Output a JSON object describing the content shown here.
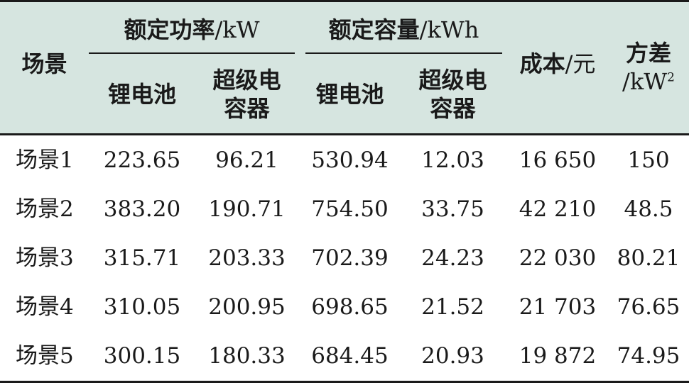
{
  "header": {
    "scenario": "场景",
    "power_group": {
      "cn": "额定功率",
      "unit": "/kW"
    },
    "capacity_group": {
      "cn": "额定容量",
      "unit": "/kWh"
    },
    "li_battery": "锂电池",
    "supercap_line1": "超级电",
    "supercap_line2": "容器",
    "cost": {
      "cn": "成本",
      "unit": "/元"
    },
    "variance": {
      "cn": "方差",
      "unit": "/kW",
      "sup": "2"
    }
  },
  "rows": [
    {
      "name_cn": "场景",
      "name_num": "1",
      "p_li": "223.65",
      "p_sc": "96.21",
      "c_li": "530.94",
      "c_sc": "12.03",
      "cost": "16 650",
      "variance": "150"
    },
    {
      "name_cn": "场景",
      "name_num": "2",
      "p_li": "383.20",
      "p_sc": "190.71",
      "c_li": "754.50",
      "c_sc": "33.75",
      "cost": "42 210",
      "variance": "48.5"
    },
    {
      "name_cn": "场景",
      "name_num": "3",
      "p_li": "315.71",
      "p_sc": "203.33",
      "c_li": "702.39",
      "c_sc": "24.23",
      "cost": "22 030",
      "variance": "80.21"
    },
    {
      "name_cn": "场景",
      "name_num": "4",
      "p_li": "310.05",
      "p_sc": "200.95",
      "c_li": "698.65",
      "c_sc": "21.52",
      "cost": "21 703",
      "variance": "76.65"
    },
    {
      "name_cn": "场景",
      "name_num": "5",
      "p_li": "300.15",
      "p_sc": "180.33",
      "c_li": "684.45",
      "c_sc": "20.93",
      "cost": "19 872",
      "variance": "74.95"
    }
  ],
  "colors": {
    "header_bg": "#d6e5e0",
    "rule": "#1a1a1a"
  }
}
